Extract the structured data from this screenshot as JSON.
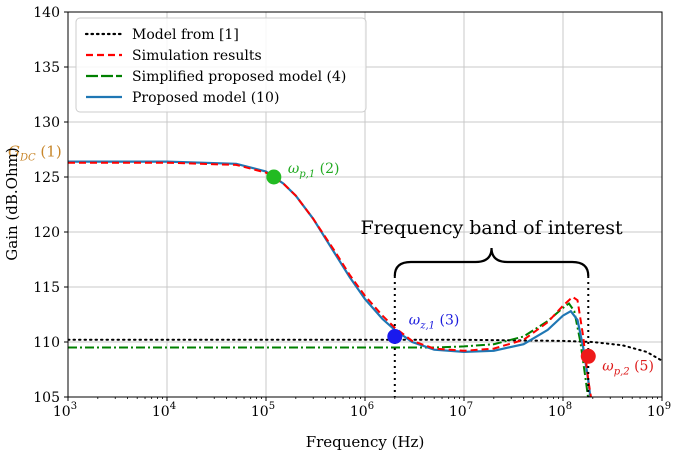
{
  "chart_data": {
    "type": "line",
    "title": "",
    "xlabel": "Frequency (Hz)",
    "ylabel": "Gain (dB.Ohm)",
    "xscale": "log",
    "xlim": [
      1000,
      1000000000
    ],
    "ylim": [
      105,
      140
    ],
    "grid": true,
    "legend_position": "top-left",
    "x_ticks": [
      {
        "exp": "3",
        "value": 1000
      },
      {
        "exp": "4",
        "value": 10000
      },
      {
        "exp": "5",
        "value": 100000
      },
      {
        "exp": "6",
        "value": 1000000
      },
      {
        "exp": "7",
        "value": 10000000
      },
      {
        "exp": "8",
        "value": 100000000
      },
      {
        "exp": "9",
        "value": 1000000000
      }
    ],
    "y_ticks": [
      105,
      110,
      115,
      120,
      125,
      130,
      135,
      140
    ],
    "series": [
      {
        "name": "Model from [1]",
        "color": "#000000",
        "style": "dotted",
        "points": [
          [
            1000,
            110.2
          ],
          [
            10000,
            110.2
          ],
          [
            100000,
            110.2
          ],
          [
            1000000,
            110.2
          ],
          [
            10000000,
            110.2
          ],
          [
            100000000,
            110.1
          ],
          [
            200000000,
            110.0
          ],
          [
            400000000,
            109.7
          ],
          [
            700000000,
            109.1
          ],
          [
            1000000000,
            108.3
          ]
        ]
      },
      {
        "name": "Simulation results",
        "color": "#ff0000",
        "style": "dashed",
        "points": [
          [
            1000,
            126.3
          ],
          [
            10000,
            126.3
          ],
          [
            50000,
            126.1
          ],
          [
            100000,
            125.4
          ],
          [
            150000,
            124.4
          ],
          [
            200000,
            123.3
          ],
          [
            300000,
            121.2
          ],
          [
            500000,
            118.2
          ],
          [
            700000,
            116.1
          ],
          [
            1000000,
            114.2
          ],
          [
            1500000,
            112.4
          ],
          [
            2000000,
            111.3
          ],
          [
            3000000,
            110.1
          ],
          [
            5000000,
            109.4
          ],
          [
            10000000,
            109.2
          ],
          [
            20000000,
            109.4
          ],
          [
            40000000,
            110.2
          ],
          [
            70000000,
            111.8
          ],
          [
            100000000,
            113.3
          ],
          [
            125000000,
            114.1
          ],
          [
            140000000,
            113.8
          ],
          [
            160000000,
            110.5
          ],
          [
            180000000,
            106.5
          ],
          [
            200000000,
            104.0
          ]
        ]
      },
      {
        "name": "Simplified proposed model (4)",
        "color": "#008000",
        "style": "dash-dot",
        "points": [
          [
            1000,
            109.5
          ],
          [
            100000,
            109.5
          ],
          [
            1000000,
            109.5
          ],
          [
            5000000,
            109.5
          ],
          [
            10000000,
            109.6
          ],
          [
            20000000,
            109.8
          ],
          [
            40000000,
            110.5
          ],
          [
            70000000,
            111.9
          ],
          [
            100000000,
            113.1
          ],
          [
            115000000,
            113.5
          ],
          [
            130000000,
            112.8
          ],
          [
            150000000,
            110.0
          ],
          [
            170000000,
            106.5
          ],
          [
            185000000,
            104.0
          ]
        ]
      },
      {
        "name": "Proposed model (10)",
        "color": "#1f77b4",
        "style": "solid",
        "points": [
          [
            1000,
            126.4
          ],
          [
            10000,
            126.4
          ],
          [
            50000,
            126.2
          ],
          [
            100000,
            125.5
          ],
          [
            150000,
            124.4
          ],
          [
            200000,
            123.3
          ],
          [
            300000,
            121.2
          ],
          [
            500000,
            118.0
          ],
          [
            700000,
            115.9
          ],
          [
            1000000,
            113.9
          ],
          [
            1500000,
            112.1
          ],
          [
            2000000,
            111.1
          ],
          [
            3000000,
            110.0
          ],
          [
            5000000,
            109.3
          ],
          [
            10000000,
            109.1
          ],
          [
            20000000,
            109.2
          ],
          [
            40000000,
            109.8
          ],
          [
            70000000,
            111.1
          ],
          [
            100000000,
            112.4
          ],
          [
            120000000,
            112.8
          ],
          [
            140000000,
            112.0
          ],
          [
            160000000,
            109.5
          ],
          [
            180000000,
            106.5
          ],
          [
            195000000,
            104.0
          ]
        ]
      }
    ],
    "markers": [
      {
        "label": "ω_{p,1} (2)",
        "x": 120000,
        "y": 125.0,
        "color": "#22bb22",
        "label_color": "#22aa22",
        "label_side": "right"
      },
      {
        "label": "ω_{z,1} (3)",
        "x": 2000000,
        "y": 110.5,
        "color": "#1a1aee",
        "label_color": "#1a1add",
        "label_side": "right-up"
      },
      {
        "label": "ω_{p,2} (5)",
        "x": 180000000,
        "y": 108.7,
        "color": "#ee1a1a",
        "label_color": "#dd1a1a",
        "label_side": "right-down"
      }
    ],
    "annotations": {
      "gdc_label": "G_{DC} (1)",
      "gdc_color": "#c8862a",
      "gdc_y": 126.3,
      "band_label": "Frequency band of interest",
      "band_x_start": 2000000,
      "band_x_end": 180000000,
      "band_y_brace": 116.0,
      "band_vline_bottom": 105
    }
  }
}
